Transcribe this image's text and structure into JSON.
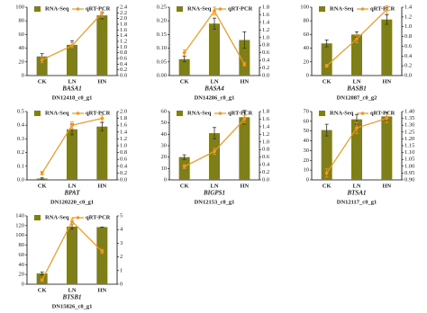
{
  "chart_data": [
    {
      "type": "combo",
      "categories": [
        "CK",
        "LN",
        "HN"
      ],
      "gene": "BASA1",
      "transcript": "DN12418_c0_g1",
      "series": [
        {
          "name": "RNA-Seq",
          "type": "bar",
          "color": "#7f7f1a",
          "values": [
            28,
            45,
            88
          ],
          "errors": [
            4,
            6,
            5
          ]
        },
        {
          "name": "qRT-PCR",
          "type": "line",
          "axis": "y2",
          "color": "#f7941d",
          "values": [
            0.55,
            1.05,
            2.2
          ],
          "errors": [
            0.1,
            0.1,
            0.15
          ]
        }
      ],
      "ylim": [
        0,
        100
      ],
      "yticks": [
        0,
        20,
        40,
        60,
        80,
        100
      ],
      "y2lim": [
        0,
        2.4
      ],
      "y2ticks": [
        {
          "value": 0,
          "label": "0.0"
        },
        0.2,
        0.4,
        0.6,
        0.8,
        {
          "value": 1,
          "label": "1.0"
        },
        1.2,
        1.4,
        1.6,
        1.8,
        {
          "value": 2,
          "label": "2.0"
        },
        2.2,
        2.4
      ]
    },
    {
      "type": "combo",
      "categories": [
        "CK",
        "LN",
        "HN"
      ],
      "gene": "BASA4",
      "transcript": "DN14286_c0_g1",
      "series": [
        {
          "name": "RNA-Seq",
          "type": "bar",
          "color": "#7f7f1a",
          "values": [
            0.06,
            0.19,
            0.13
          ],
          "errors": [
            0.01,
            0.02,
            0.03
          ]
        },
        {
          "name": "qRT-PCR",
          "type": "line",
          "axis": "y2",
          "color": "#f7941d",
          "values": [
            0.6,
            1.7,
            0.3
          ],
          "errors": [
            0.08,
            0.1,
            0.05
          ]
        }
      ],
      "ylim": [
        0,
        0.25
      ],
      "yticks": [
        {
          "value": 0,
          "label": "0.00"
        },
        {
          "value": 0.05,
          "label": "0.05"
        },
        {
          "value": 0.1,
          "label": "0.10"
        },
        {
          "value": 0.15,
          "label": "0.15"
        },
        {
          "value": 0.2,
          "label": "0.20"
        },
        {
          "value": 0.25,
          "label": "0.25"
        }
      ],
      "y2lim": [
        0,
        1.8
      ],
      "y2ticks": [
        {
          "value": 0,
          "label": "0.0"
        },
        0.2,
        0.4,
        0.6,
        0.8,
        {
          "value": 1,
          "label": "1.0"
        },
        1.2,
        1.4,
        1.6,
        1.8
      ]
    },
    {
      "type": "combo",
      "categories": [
        "CK",
        "LN",
        "HN"
      ],
      "gene": "BASB1",
      "transcript": "DN12087_c0_g2",
      "series": [
        {
          "name": "RNA-Seq",
          "type": "bar",
          "color": "#7f7f1a",
          "values": [
            47,
            60,
            82
          ],
          "errors": [
            5,
            4,
            7
          ]
        },
        {
          "name": "qRT-PCR",
          "type": "line",
          "axis": "y2",
          "color": "#f7941d",
          "values": [
            0.2,
            0.75,
            1.35
          ],
          "errors": [
            0.03,
            0.08,
            0.08
          ]
        }
      ],
      "ylim": [
        0,
        100
      ],
      "yticks": [
        0,
        20,
        40,
        60,
        80,
        100
      ],
      "y2lim": [
        0,
        1.4
      ],
      "y2ticks": [
        {
          "value": 0,
          "label": "0.0"
        },
        0.2,
        0.4,
        0.6,
        0.8,
        {
          "value": 1,
          "label": "1.0"
        },
        1.2,
        1.4
      ]
    },
    {
      "type": "combo",
      "categories": [
        "CK",
        "LN",
        "HN"
      ],
      "gene": "BPAT",
      "transcript": "DN120220_c0_g1",
      "series": [
        {
          "name": "RNA-Seq",
          "type": "bar",
          "color": "#7f7f1a",
          "values": [
            0.01,
            0.37,
            0.39
          ],
          "errors": [
            0.005,
            0.04,
            0.03
          ]
        },
        {
          "name": "qRT-PCR",
          "type": "line",
          "axis": "y2",
          "color": "#f7941d",
          "values": [
            0.2,
            1.6,
            1.8
          ],
          "errors": [
            0.05,
            0.1,
            0.1
          ]
        }
      ],
      "ylim": [
        0,
        0.5
      ],
      "yticks": [
        {
          "value": 0,
          "label": "0.0"
        },
        0.1,
        0.2,
        0.3,
        0.4,
        0.5
      ],
      "y2lim": [
        0,
        2
      ],
      "y2ticks": [
        {
          "value": 0,
          "label": "0.0"
        },
        0.2,
        0.4,
        0.6,
        0.8,
        {
          "value": 1,
          "label": "1.0"
        },
        1.2,
        1.4,
        1.6,
        1.8,
        {
          "value": 2,
          "label": "2.0"
        }
      ]
    },
    {
      "type": "combo",
      "categories": [
        "CK",
        "LN",
        "HN"
      ],
      "gene": "BIGPS1",
      "transcript": "DN12153_c0_g1",
      "series": [
        {
          "name": "RNA-Seq",
          "type": "bar",
          "color": "#7f7f1a",
          "values": [
            20,
            41,
            55
          ],
          "errors": [
            2,
            5,
            6
          ]
        },
        {
          "name": "qRT-PCR",
          "type": "line",
          "axis": "y2",
          "color": "#f7941d",
          "values": [
            0.35,
            0.75,
            1.6
          ],
          "errors": [
            0.05,
            0.08,
            0.1
          ]
        }
      ],
      "ylim": [
        0,
        60
      ],
      "yticks": [
        0,
        10,
        20,
        30,
        40,
        50,
        60
      ],
      "y2lim": [
        0,
        1.8
      ],
      "y2ticks": [
        {
          "value": 0,
          "label": "0.0"
        },
        0.2,
        0.4,
        0.6,
        0.8,
        {
          "value": 1,
          "label": "1.0"
        },
        1.2,
        1.4,
        1.6,
        1.8
      ]
    },
    {
      "type": "combo",
      "categories": [
        "CK",
        "LN",
        "HN"
      ],
      "gene": "BTSA1",
      "transcript": "DN12117_c0_g1",
      "series": [
        {
          "name": "RNA-Seq",
          "type": "bar",
          "color": "#7f7f1a",
          "values": [
            51,
            62,
            65
          ],
          "errors": [
            6,
            5,
            4
          ]
        },
        {
          "name": "qRT-PCR",
          "type": "line",
          "axis": "y2",
          "color": "#f7941d",
          "values": [
            0.95,
            1.28,
            1.35
          ],
          "errors": [
            0.03,
            0.04,
            0.03
          ]
        }
      ],
      "ylim": [
        0,
        70
      ],
      "yticks": [
        0,
        10,
        20,
        30,
        40,
        50,
        60,
        70
      ],
      "y2lim": [
        0.9,
        1.4
      ],
      "y2ticks": [
        {
          "value": 0.9,
          "label": "0.90"
        },
        0.95,
        {
          "value": 1,
          "label": "1.00"
        },
        1.05,
        {
          "value": 1.1,
          "label": "1.10"
        },
        1.15,
        {
          "value": 1.2,
          "label": "1.20"
        },
        1.25,
        {
          "value": 1.3,
          "label": "1.30"
        },
        1.35,
        {
          "value": 1.4,
          "label": "1.40"
        }
      ]
    },
    {
      "type": "combo",
      "categories": [
        "CK",
        "LN",
        "HN"
      ],
      "gene": "BTSB1",
      "transcript": "DN15826_c0_g1",
      "series": [
        {
          "name": "RNA-Seq",
          "type": "bar",
          "color": "#7f7f1a",
          "values": [
            22,
            118,
            117
          ],
          "errors": [
            3,
            5,
            0
          ]
        },
        {
          "name": "qRT-PCR",
          "type": "line",
          "axis": "y2",
          "color": "#f7941d",
          "values": [
            0.3,
            4.6,
            2.4
          ],
          "errors": [
            0.1,
            0.2,
            0.15
          ]
        }
      ],
      "ylim": [
        0,
        140
      ],
      "yticks": [
        0,
        20,
        40,
        60,
        80,
        100,
        120,
        140
      ],
      "y2lim": [
        0,
        5
      ],
      "y2ticks": [
        0,
        1,
        2,
        3,
        4,
        5
      ]
    }
  ]
}
